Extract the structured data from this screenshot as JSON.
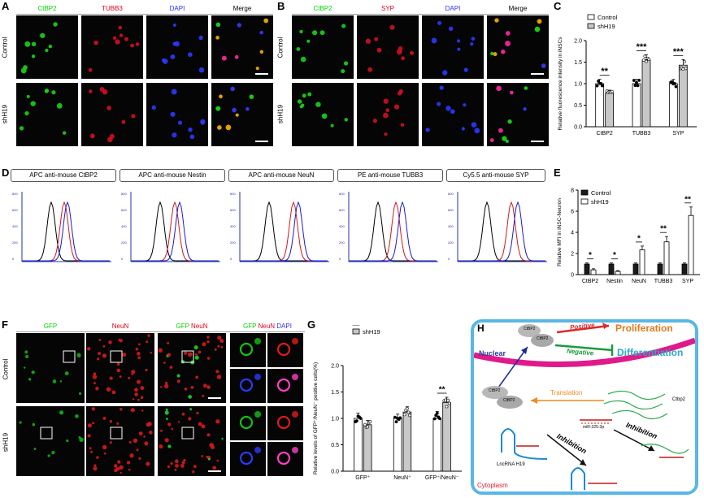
{
  "panels": {
    "A": {
      "letter": "A",
      "headers": [
        "CtBP2",
        "TUBB3",
        "DAPI",
        "Merge"
      ],
      "rows": [
        "Control",
        "shH19"
      ],
      "colors": [
        "#00d400",
        "#e0001a",
        "#2a2aff",
        "#000000"
      ]
    },
    "B": {
      "letter": "B",
      "headers": [
        "CtBP2",
        "SYP",
        "DAPI",
        "Merge"
      ],
      "rows": [
        "Control",
        "shH19"
      ],
      "colors": [
        "#00d400",
        "#e0001a",
        "#2a2aff",
        "#000000"
      ]
    },
    "C": {
      "letter": "C",
      "ylabel": "Relative fluorescence intensity in iNSCs",
      "legend": [
        "Control",
        "shH19"
      ]
    },
    "D": {
      "letter": "D",
      "titles": [
        "APC anti-mouse CtBP2",
        "APC anti-mouse Nestin",
        "APC anti-mouse NeuN",
        "PE anti-mouse TUBB3",
        "Cy5.5 anti-mouse SYP"
      ]
    },
    "E": {
      "letter": "E",
      "ylabel": "Relative MFI in iNSC-Neuron",
      "legend": [
        "Control",
        "shH19"
      ]
    },
    "F": {
      "letter": "F",
      "headers": [
        "GFP",
        "NeuN",
        "GFP NeuN",
        "GFP NeuN DAPI"
      ],
      "rows": [
        "Control",
        "shH19"
      ]
    },
    "G": {
      "letter": "G",
      "ylabel": "Relative levels of GFP⁺/NeuN⁻ positive cells(%)",
      "legend": [
        "Control",
        "shH19"
      ]
    },
    "H": {
      "letter": "H",
      "nuclear": "Nuclear",
      "cytoplasm": "Cytoplasm",
      "positive": "Positive",
      "negative": "Negative",
      "proliferation": "Proliferation",
      "differentiation": "Differentiation",
      "translation": "Translation",
      "inhibition": "Inhibition",
      "ctbp2": "CtBP2",
      "ctbp2_mrna": "Ctbp2",
      "mir": "miR-325-3p",
      "lncrna": "LncRNA H19"
    }
  },
  "chart_data": [
    {
      "id": "C",
      "type": "bar",
      "categories": [
        "CtBP2",
        "TUBB3",
        "SYP"
      ],
      "series": [
        {
          "name": "Control",
          "values": [
            1.0,
            1.0,
            1.0
          ],
          "errors": [
            0.1,
            0.1,
            0.1
          ]
        },
        {
          "name": "shH19",
          "values": [
            0.78,
            1.55,
            1.43
          ],
          "errors": [
            0.07,
            0.12,
            0.13
          ]
        }
      ],
      "significance": [
        "**",
        "***",
        "***"
      ],
      "ylabel": "Relative fluorescence intensity in iNSCs",
      "ylim": [
        0,
        2.0
      ],
      "yticks": [
        "0.0",
        "0.5",
        "1.0",
        "1.5",
        "2.0"
      ],
      "colors": [
        "#ffffff",
        "#c8c8c8"
      ],
      "legend": "top-left"
    },
    {
      "id": "E",
      "type": "bar",
      "categories": [
        "CtBP2",
        "Nestin",
        "NeuN",
        "TUBB3",
        "SYP"
      ],
      "series": [
        {
          "name": "Control",
          "values": [
            1.0,
            1.0,
            1.0,
            1.0,
            1.0
          ],
          "errors": [
            0.1,
            0.1,
            0.1,
            0.1,
            0.1
          ]
        },
        {
          "name": "shH19",
          "values": [
            0.45,
            0.3,
            2.35,
            3.1,
            5.6
          ],
          "errors": [
            0.1,
            0.08,
            0.35,
            0.5,
            0.8
          ]
        }
      ],
      "significance": [
        "*",
        "*",
        "*",
        "**",
        "**"
      ],
      "ylabel": "Relative MFI in iNSC-Neuron",
      "ylim": [
        0,
        8
      ],
      "yticks": [
        "0",
        "2",
        "4",
        "6",
        "8"
      ],
      "colors": [
        "#1a1a1a",
        "#ffffff"
      ],
      "legend": "top-left"
    },
    {
      "id": "G",
      "type": "bar",
      "categories": [
        "GFP⁺",
        "NeuN⁺",
        "GFP⁺/NeuN⁻"
      ],
      "series": [
        {
          "name": "Control",
          "values": [
            1.0,
            1.0,
            1.0
          ],
          "errors": [
            0.1,
            0.08,
            0.13
          ]
        },
        {
          "name": "shH19",
          "values": [
            0.88,
            1.12,
            1.3
          ],
          "errors": [
            0.08,
            0.1,
            0.1
          ]
        }
      ],
      "significance": [
        "",
        "",
        "**"
      ],
      "ylabel": "Relative levels of GFP⁺/NeuN⁻ positive cells(%)",
      "ylim": [
        0,
        2.0
      ],
      "yticks": [
        "0.0",
        "0.5",
        "1.0",
        "1.5",
        "2.0"
      ],
      "colors": [
        "#ffffff",
        "#c8c8c8"
      ],
      "legend": "top-left"
    }
  ]
}
